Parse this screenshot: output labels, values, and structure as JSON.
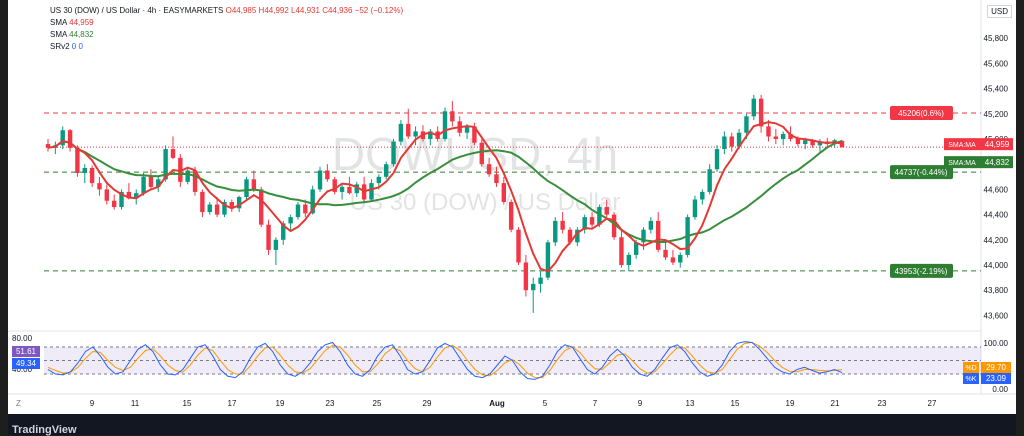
{
  "legend": {
    "symbol": "US 30 (DOW) / US Dollar · 4h · EASYMARKETS",
    "o": "O44,985",
    "h": "H44,992",
    "l": "L44,931",
    "c": "C44,936",
    "chg": "−52 (−0.12%)",
    "sma1_label": "SMA",
    "sma1_val": "44,959",
    "sma2_label": "SMA",
    "sma2_val": "44,832",
    "srv_label": "SRv2",
    "srv_vals": "0  0"
  },
  "currency_button": "USD",
  "zoom_button": "Z",
  "brand": "TradingView",
  "colors": {
    "up": "#089981",
    "down": "#f23645",
    "sma_fast": "#e53935",
    "sma_slow": "#388e3c",
    "level_red": "#f23645",
    "level_green": "#2e7d32"
  },
  "chart_data": {
    "type": "candlestick",
    "watermark_main": "DOWUSD, 4h",
    "watermark_sub": "US 30 (DOW) / US Dollar",
    "price_axis": {
      "ticks": [
        45800,
        45600,
        45400,
        45200,
        45000,
        44800,
        44600,
        44400,
        44200,
        44000,
        43800,
        43600
      ],
      "labels": [
        "45,800",
        "45,600",
        "45,400",
        "45,200",
        "45,000",
        "44,800",
        "44,600",
        "44,400",
        "44,200",
        "44,000",
        "43,800",
        "43,600"
      ]
    },
    "time_axis": {
      "labels": [
        "9",
        "11",
        "15",
        "17",
        "19",
        "23",
        "25",
        "29",
        "Aug",
        "5",
        "7",
        "9",
        "13",
        "15",
        "19",
        "21",
        "23",
        "27"
      ]
    },
    "levels": [
      {
        "value": 45206,
        "label": "45206(0.6%)",
        "color": "red"
      },
      {
        "value": 44737,
        "label": "44737(-0.44%)",
        "color": "green"
      },
      {
        "value": 43953,
        "label": "43953(-2.19%)",
        "color": "green"
      }
    ],
    "price_tags": [
      {
        "label": "SMA:MA",
        "value": 44959,
        "text": "44,959",
        "color": "red"
      },
      {
        "label": "SMA:MA",
        "value": 44832,
        "text": "44,832",
        "color": "green"
      }
    ],
    "candles": [
      [
        44960,
        45000,
        44900,
        44930
      ],
      [
        44930,
        44980,
        44880,
        44950
      ],
      [
        44950,
        45100,
        44920,
        45070
      ],
      [
        45070,
        45080,
        44900,
        44930
      ],
      [
        44930,
        44950,
        44700,
        44730
      ],
      [
        44730,
        44800,
        44650,
        44770
      ],
      [
        44770,
        44790,
        44620,
        44650
      ],
      [
        44650,
        44700,
        44550,
        44600
      ],
      [
        44600,
        44640,
        44480,
        44510
      ],
      [
        44510,
        44560,
        44440,
        44460
      ],
      [
        44460,
        44600,
        44440,
        44580
      ],
      [
        44580,
        44650,
        44520,
        44530
      ],
      [
        44530,
        44600,
        44480,
        44570
      ],
      [
        44570,
        44730,
        44550,
        44700
      ],
      [
        44700,
        44760,
        44600,
        44620
      ],
      [
        44620,
        44700,
        44580,
        44680
      ],
      [
        44680,
        44950,
        44660,
        44920
      ],
      [
        44920,
        45020,
        44840,
        44850
      ],
      [
        44850,
        44880,
        44620,
        44660
      ],
      [
        44660,
        44780,
        44640,
        44750
      ],
      [
        44750,
        44780,
        44550,
        44580
      ],
      [
        44580,
        44600,
        44380,
        44420
      ],
      [
        44420,
        44500,
        44400,
        44480
      ],
      [
        44480,
        44540,
        44380,
        44400
      ],
      [
        44400,
        44520,
        44380,
        44500
      ],
      [
        44500,
        44520,
        44420,
        44450
      ],
      [
        44450,
        44550,
        44420,
        44540
      ],
      [
        44540,
        44700,
        44520,
        44680
      ],
      [
        44680,
        44750,
        44580,
        44600
      ],
      [
        44600,
        44620,
        44300,
        44320
      ],
      [
        44320,
        44360,
        44080,
        44120
      ],
      [
        44120,
        44220,
        44000,
        44200
      ],
      [
        44200,
        44350,
        44160,
        44330
      ],
      [
        44330,
        44400,
        44280,
        44380
      ],
      [
        44380,
        44500,
        44360,
        44480
      ],
      [
        44480,
        44520,
        44380,
        44410
      ],
      [
        44410,
        44630,
        44400,
        44600
      ],
      [
        44600,
        44780,
        44580,
        44750
      ],
      [
        44750,
        44800,
        44660,
        44680
      ],
      [
        44680,
        44700,
        44560,
        44580
      ],
      [
        44580,
        44640,
        44520,
        44620
      ],
      [
        44620,
        44700,
        44560,
        44570
      ],
      [
        44570,
        44660,
        44540,
        44640
      ],
      [
        44640,
        44700,
        44500,
        44520
      ],
      [
        44520,
        44680,
        44500,
        44650
      ],
      [
        44650,
        44720,
        44600,
        44700
      ],
      [
        44700,
        44820,
        44680,
        44800
      ],
      [
        44800,
        45000,
        44780,
        44980
      ],
      [
        44980,
        45150,
        44950,
        45120
      ],
      [
        45120,
        45240,
        45000,
        45020
      ],
      [
        45020,
        45100,
        44950,
        45060
      ],
      [
        45060,
        45110,
        44980,
        45000
      ],
      [
        45000,
        45080,
        44950,
        45060
      ],
      [
        45060,
        45100,
        44980,
        45000
      ],
      [
        45000,
        45250,
        44980,
        45220
      ],
      [
        45220,
        45300,
        45100,
        45140
      ],
      [
        45140,
        45180,
        45020,
        45050
      ],
      [
        45050,
        45120,
        45000,
        45100
      ],
      [
        45100,
        45130,
        44950,
        44970
      ],
      [
        44970,
        45000,
        44780,
        44800
      ],
      [
        44800,
        44850,
        44700,
        44720
      ],
      [
        44720,
        44780,
        44620,
        44650
      ],
      [
        44650,
        44700,
        44480,
        44500
      ],
      [
        44500,
        44520,
        44260,
        44280
      ],
      [
        44280,
        44300,
        44000,
        44020
      ],
      [
        44020,
        44080,
        43750,
        43800
      ],
      [
        43800,
        43900,
        43620,
        43850
      ],
      [
        43850,
        43950,
        43780,
        43900
      ],
      [
        43900,
        44200,
        43880,
        44180
      ],
      [
        44180,
        44380,
        44150,
        44350
      ],
      [
        44350,
        44420,
        44250,
        44280
      ],
      [
        44280,
        44300,
        44160,
        44180
      ],
      [
        44180,
        44300,
        44150,
        44280
      ],
      [
        44280,
        44400,
        44250,
        44380
      ],
      [
        44380,
        44420,
        44300,
        44320
      ],
      [
        44320,
        44480,
        44300,
        44460
      ],
      [
        44460,
        44520,
        44380,
        44400
      ],
      [
        44400,
        44420,
        44200,
        44220
      ],
      [
        44220,
        44280,
        43980,
        44000
      ],
      [
        44000,
        44100,
        43950,
        44080
      ],
      [
        44080,
        44200,
        44050,
        44180
      ],
      [
        44180,
        44300,
        44120,
        44280
      ],
      [
        44280,
        44380,
        44250,
        44350
      ],
      [
        44350,
        44420,
        44100,
        44120
      ],
      [
        44120,
        44180,
        44040,
        44060
      ],
      [
        44060,
        44120,
        44000,
        44020
      ],
      [
        44020,
        44100,
        43980,
        44080
      ],
      [
        44080,
        44400,
        44060,
        44380
      ],
      [
        44380,
        44550,
        44360,
        44520
      ],
      [
        44520,
        44600,
        44480,
        44580
      ],
      [
        44580,
        44800,
        44560,
        44760
      ],
      [
        44760,
        44950,
        44740,
        44920
      ],
      [
        44920,
        45060,
        44880,
        45020
      ],
      [
        45020,
        45050,
        44900,
        44940
      ],
      [
        44940,
        45080,
        44920,
        45050
      ],
      [
        45050,
        45200,
        45000,
        45180
      ],
      [
        45180,
        45350,
        45150,
        45320
      ],
      [
        45320,
        45350,
        45050,
        45100
      ],
      [
        45100,
        45150,
        44980,
        45020
      ],
      [
        45020,
        45080,
        44960,
        45000
      ],
      [
        45000,
        45060,
        44950,
        45040
      ],
      [
        45040,
        45100,
        44980,
        45000
      ],
      [
        45000,
        45020,
        44940,
        44960
      ],
      [
        44960,
        45010,
        44920,
        44990
      ],
      [
        44990,
        45000,
        44930,
        44950
      ],
      [
        44950,
        45000,
        44900,
        44980
      ],
      [
        44980,
        45010,
        44940,
        44960
      ],
      [
        44960,
        45000,
        44930,
        44990
      ],
      [
        44985,
        44992,
        44931,
        44936
      ]
    ],
    "stoch_rsi": {
      "label_left_top": "80.00",
      "label_left_mid": "40.00",
      "left_values": [
        "51.61",
        "49.34"
      ],
      "right_ticks": [
        "100.00",
        "0.00"
      ],
      "right_values": [
        {
          "label": "%D",
          "value": "29.70"
        },
        {
          "label": "%K",
          "value": "23.09"
        }
      ],
      "k": [
        30,
        20,
        18,
        25,
        45,
        70,
        80,
        60,
        35,
        20,
        25,
        50,
        75,
        85,
        70,
        40,
        20,
        18,
        30,
        55,
        80,
        85,
        60,
        30,
        15,
        12,
        25,
        55,
        80,
        88,
        70,
        40,
        20,
        15,
        25,
        45,
        70,
        85,
        90,
        70,
        40,
        20,
        15,
        30,
        60,
        80,
        85,
        60,
        30,
        20,
        25,
        50,
        78,
        88,
        80,
        55,
        30,
        15,
        12,
        20,
        40,
        60,
        50,
        25,
        10,
        8,
        15,
        40,
        70,
        85,
        80,
        55,
        30,
        20,
        35,
        60,
        75,
        60,
        35,
        20,
        15,
        30,
        55,
        78,
        85,
        70,
        45,
        25,
        15,
        20,
        40,
        70,
        88,
        92,
        90,
        75,
        55,
        35,
        25,
        20,
        30,
        35,
        28,
        22,
        25,
        30,
        23
      ],
      "d": [
        35,
        28,
        22,
        24,
        35,
        55,
        70,
        68,
        50,
        35,
        28,
        35,
        55,
        72,
        76,
        60,
        40,
        28,
        24,
        40,
        62,
        78,
        72,
        50,
        30,
        20,
        20,
        38,
        60,
        78,
        80,
        62,
        40,
        25,
        22,
        32,
        52,
        72,
        84,
        80,
        62,
        40,
        25,
        25,
        42,
        65,
        78,
        72,
        50,
        32,
        25,
        35,
        58,
        78,
        84,
        72,
        50,
        30,
        18,
        16,
        28,
        45,
        52,
        40,
        22,
        12,
        12,
        28,
        52,
        72,
        80,
        68,
        48,
        32,
        30,
        45,
        62,
        65,
        50,
        32,
        22,
        25,
        42,
        62,
        78,
        78,
        60,
        40,
        25,
        22,
        30,
        52,
        75,
        88,
        90,
        82,
        68,
        50,
        35,
        26,
        25,
        30,
        30,
        28,
        27,
        28,
        29.7
      ]
    }
  }
}
